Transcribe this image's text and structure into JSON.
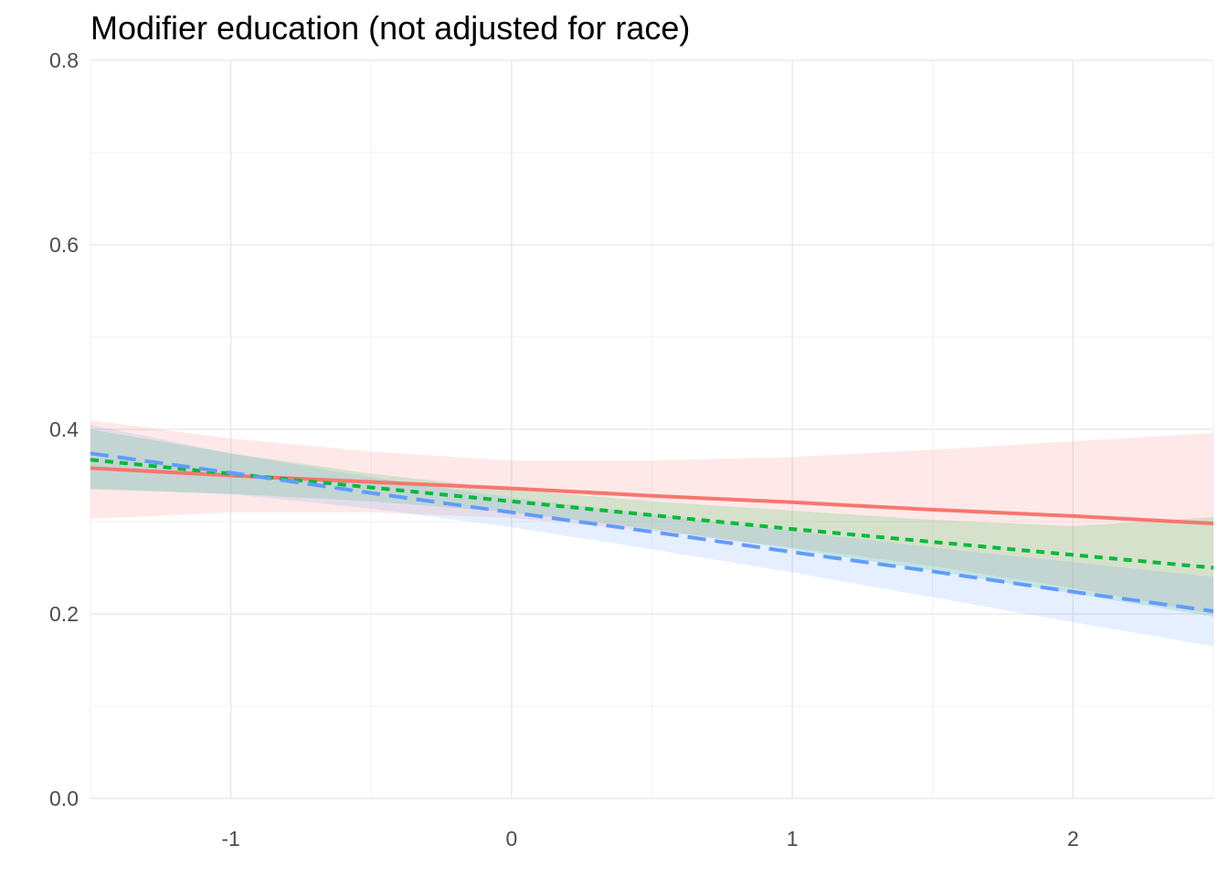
{
  "chart_data": {
    "type": "line",
    "title": "Modifier education (not adjusted for race)",
    "xlabel": "",
    "ylabel": "",
    "xlim": [
      -1.5,
      2.5
    ],
    "ylim": [
      0.0,
      0.8
    ],
    "x_ticks": [
      -1,
      0,
      1,
      2
    ],
    "y_ticks": [
      0.0,
      0.2,
      0.4,
      0.6,
      0.8
    ],
    "x_tick_labels": [
      "-1",
      "0",
      "1",
      "2"
    ],
    "y_tick_labels": [
      "0.0",
      "0.2",
      "0.4",
      "0.6",
      "0.8"
    ],
    "grid": true,
    "legend": "none",
    "series": [
      {
        "color": "#F8766D",
        "dash": "solid",
        "x": [
          -1.5,
          -1.0,
          -0.5,
          0.0,
          0.5,
          1.0,
          1.5,
          2.0,
          2.5
        ],
        "y": [
          0.358,
          0.35,
          0.343,
          0.336,
          0.328,
          0.321,
          0.313,
          0.306,
          0.298
        ],
        "lower": [
          0.303,
          0.31,
          0.31,
          0.304,
          0.29,
          0.272,
          0.252,
          0.228,
          0.2
        ],
        "upper": [
          0.41,
          0.39,
          0.376,
          0.366,
          0.366,
          0.37,
          0.378,
          0.387,
          0.396
        ]
      },
      {
        "color": "#00BA38",
        "dash": "dotted",
        "x": [
          -1.5,
          -1.0,
          -0.5,
          0.0,
          0.5,
          1.0,
          1.5,
          2.0,
          2.5
        ],
        "y": [
          0.367,
          0.352,
          0.337,
          0.322,
          0.307,
          0.292,
          0.278,
          0.264,
          0.25
        ],
        "lower": [
          0.335,
          0.33,
          0.322,
          0.31,
          0.292,
          0.27,
          0.247,
          0.222,
          0.197
        ],
        "upper": [
          0.4,
          0.374,
          0.352,
          0.335,
          0.322,
          0.312,
          0.302,
          0.295,
          0.305
        ]
      },
      {
        "color": "#619CFF",
        "dash": "dashed",
        "x": [
          -1.5,
          -1.0,
          -0.5,
          0.0,
          0.5,
          1.0,
          1.5,
          2.0,
          2.5
        ],
        "y": [
          0.374,
          0.353,
          0.331,
          0.31,
          0.289,
          0.267,
          0.246,
          0.224,
          0.203
        ],
        "lower": [
          0.336,
          0.33,
          0.314,
          0.294,
          0.27,
          0.245,
          0.218,
          0.191,
          0.165
        ],
        "upper": [
          0.405,
          0.374,
          0.348,
          0.326,
          0.308,
          0.29,
          0.272,
          0.256,
          0.24
        ]
      }
    ]
  }
}
